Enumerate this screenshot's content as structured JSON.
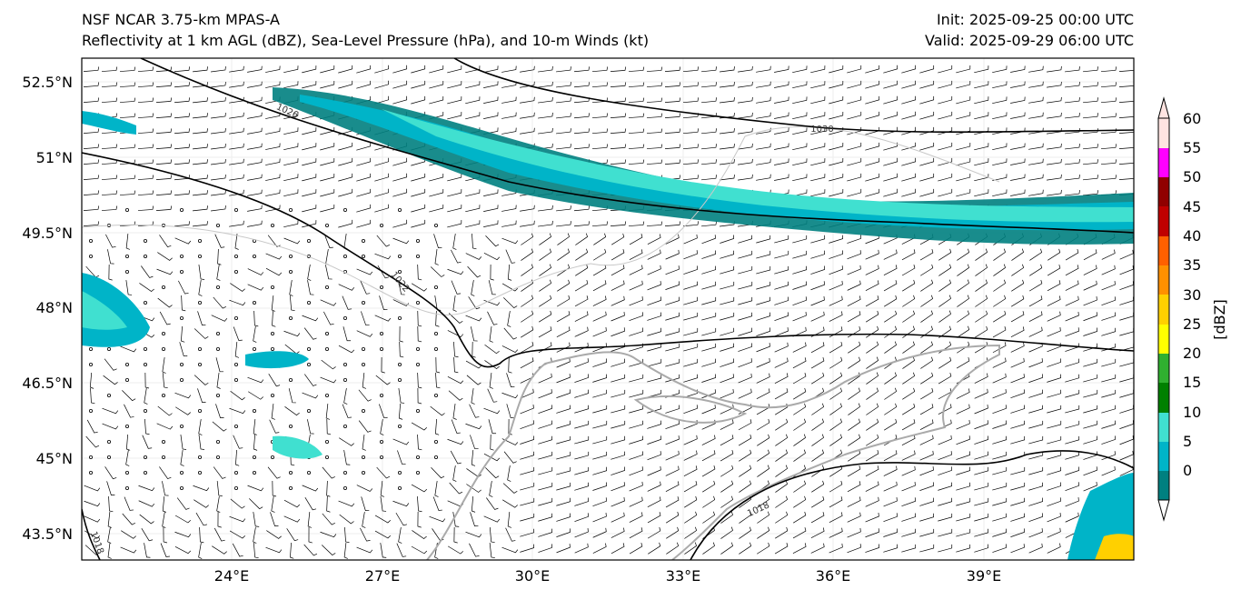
{
  "header": {
    "title_left_line1": "NSF NCAR 3.75-km MPAS-A",
    "title_left_line2": "Reflectivity at 1 km AGL (dBZ), Sea-Level Pressure (hPa), and 10-m Winds (kt)",
    "title_right_line1": "Init: 2025-09-25 00:00 UTC",
    "title_right_line2": "Valid: 2025-09-29 06:00 UTC"
  },
  "map": {
    "lat_labels": [
      "52.5°N",
      "51°N",
      "49.5°N",
      "48°N",
      "46.5°N",
      "45°N",
      "43.5°N"
    ],
    "lon_labels": [
      "24°E",
      "27°E",
      "30°E",
      "33°E",
      "36°E",
      "39°E"
    ],
    "isobar_labels": [
      "1030",
      "1026",
      "1022",
      "1018",
      "1018"
    ]
  },
  "colorbar": {
    "unit": "[dBZ]",
    "tick_labels": [
      "0",
      "5",
      "10",
      "15",
      "20",
      "25",
      "30",
      "35",
      "40",
      "45",
      "50",
      "55",
      "60"
    ],
    "colors": [
      "#008080",
      "#00b4c8",
      "#40e0d0",
      "#008000",
      "#30b030",
      "#ffff00",
      "#ffd000",
      "#ff9000",
      "#ff6000",
      "#c00000",
      "#900000",
      "#ff00ff",
      "#ffe4e1"
    ]
  }
}
